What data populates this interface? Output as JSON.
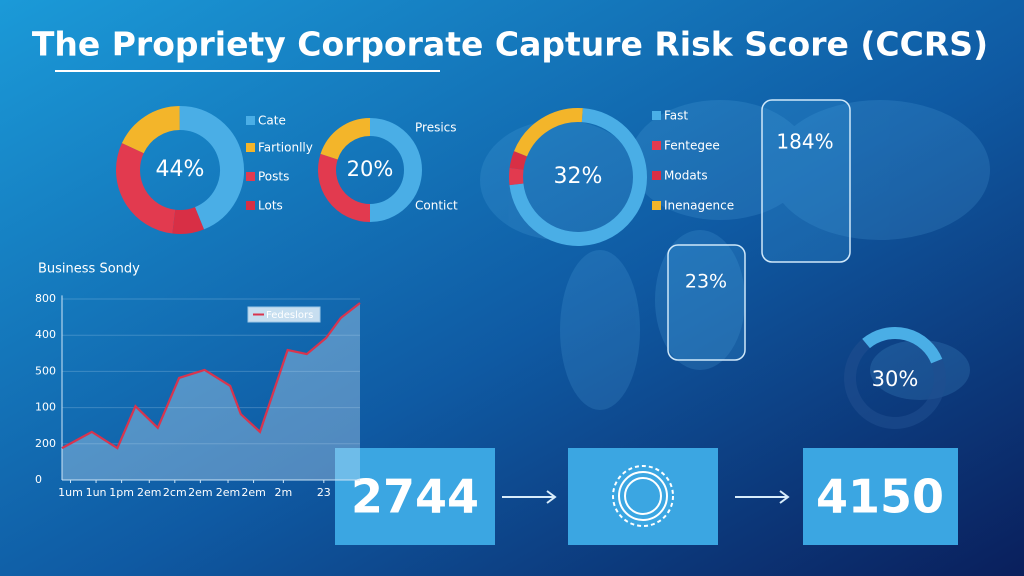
{
  "title": "The Propriety Corporate Capture Risk Score (CCRS)",
  "chart_data": [
    {
      "type": "pie",
      "center_label": "44%",
      "categories": [
        "Cate",
        "Fartionlly",
        "Posts",
        "Lots"
      ],
      "values": [
        44,
        18,
        30,
        8
      ],
      "colors": [
        "#4aaee6",
        "#f3b52a",
        "#e23a4f",
        "#d82f45"
      ]
    },
    {
      "type": "pie",
      "center_label": "20%",
      "categories": [
        "Presics",
        "Contict",
        null
      ],
      "values": [
        50,
        30,
        20
      ],
      "colors": [
        "#4aaee6",
        "#e23a4f",
        "#f3b52a"
      ]
    },
    {
      "type": "pie",
      "center_label": "32%",
      "categories": [
        "Fast",
        "Fentegee",
        "Modats",
        "Inenagence"
      ],
      "values": [
        72,
        4,
        4,
        20
      ],
      "colors": [
        "#4aaee6",
        "#e23a4f",
        "#d82f45",
        "#f3b52a"
      ]
    },
    {
      "type": "gauge",
      "value": 30,
      "value_label": "30%",
      "lim": [
        0,
        100
      ],
      "color": "#4aaee6"
    },
    {
      "type": "line",
      "title": "Business Sondy",
      "xlim": [
        0,
        14
      ],
      "xticks": [
        {
          "value": 0.4,
          "label": "1um"
        },
        {
          "value": 1.6,
          "label": "1un"
        },
        {
          "value": 2.8,
          "label": "1pm"
        },
        {
          "value": 4.1,
          "label": "2em"
        },
        {
          "value": 5.3,
          "label": "2cm"
        },
        {
          "value": 6.5,
          "label": "2em"
        },
        {
          "value": 7.8,
          "label": "2em"
        },
        {
          "value": 9.0,
          "label": "2em"
        },
        {
          "value": 10.4,
          "label": "2m"
        },
        {
          "value": 12.3,
          "label": "23"
        }
      ],
      "ylim": [
        0,
        510
      ],
      "yticks": [
        0,
        {
          "value": 100,
          "label": "200"
        },
        {
          "value": 200,
          "label": "100"
        },
        {
          "value": 300,
          "label": "500"
        },
        {
          "value": 400,
          "label": "400"
        },
        {
          "value": 500,
          "label": "800"
        }
      ],
      "series": [
        {
          "name": "Fedeslors",
          "color": "#d8344e",
          "x": [
            0,
            1.4,
            2.6,
            3.45,
            4.5,
            5.5,
            6.7,
            7.9,
            8.4,
            9.3,
            10.6,
            11.5,
            12.4,
            13.1,
            14
          ],
          "values": [
            88,
            133,
            88,
            204,
            144,
            282,
            304,
            260,
            182,
            133,
            359,
            348,
            392,
            448,
            489
          ]
        }
      ]
    }
  ],
  "callouts": [
    "184%",
    "23%"
  ],
  "flow": {
    "start": "2744",
    "end": "4150"
  }
}
